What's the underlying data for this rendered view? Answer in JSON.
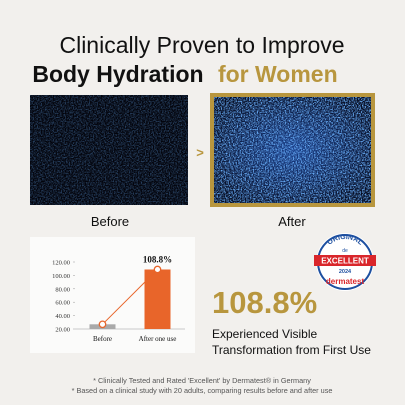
{
  "header": {
    "title_line1": "Clinically Proven to Improve",
    "title_line2": "Body Hydration",
    "title_highlight": "for Women"
  },
  "comparison": {
    "arrow": ">",
    "before_label": "Before",
    "after_label": "After"
  },
  "chart_data": {
    "type": "bar",
    "categories": [
      "Before",
      "After one use"
    ],
    "values": [
      27,
      108.8
    ],
    "value_labels": [
      null,
      "108.8%"
    ],
    "colors": [
      "#a9a9a9",
      "#e8652a"
    ],
    "line_color": "#e8652a",
    "ylim": [
      20,
      120
    ],
    "yticks": [
      {
        "value": 20,
        "label": "20.00"
      },
      {
        "value": 40,
        "label": "40.00"
      },
      {
        "value": 60,
        "label": "60.00"
      },
      {
        "value": 80,
        "label": "80.00"
      },
      {
        "value": 100,
        "label": "100.00"
      },
      {
        "value": 120,
        "label": "120.00"
      }
    ]
  },
  "badge": {
    "top": "ORIGINAL",
    "mark": "de",
    "label": "EXCELLENT",
    "year": "2024",
    "brand": "dermatest"
  },
  "result": {
    "value": "108.8%",
    "caption_line1": "Experienced Visible",
    "caption_line2": "Transformation from First Use"
  },
  "footnotes": [
    "* Clinically Tested and Rated 'Excellent' by Dermatest® in Germany",
    "* Based on a clinical study with 20 adults, comparing results before and after use"
  ]
}
